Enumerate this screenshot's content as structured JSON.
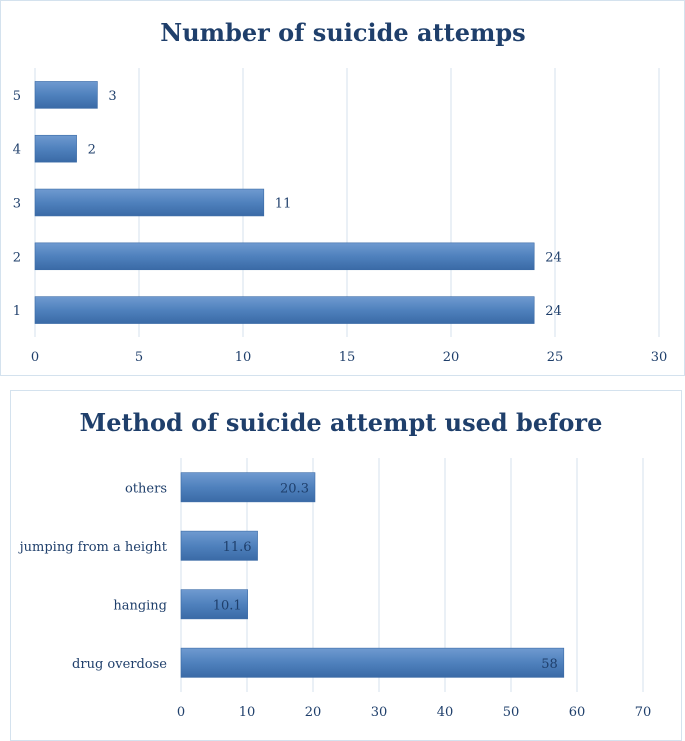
{
  "colors": {
    "bar": "#4f81bd",
    "bar_dark": "#3a6aa6",
    "bar_light": "#6f9ad0",
    "grid": "#d4e2ee",
    "text": "#1f3f6b"
  },
  "chart_data": [
    {
      "type": "bar",
      "orientation": "horizontal",
      "title": "Number of suicide attemps",
      "categories": [
        "1",
        "2",
        "3",
        "4",
        "5"
      ],
      "values": [
        24,
        24,
        11,
        2,
        3
      ],
      "data_labels": [
        "24",
        "24",
        "11",
        "2",
        "3"
      ],
      "data_label_position": "outside-end",
      "xlim": [
        0,
        30
      ],
      "xticks": [
        "0",
        "5",
        "10",
        "15",
        "20",
        "25",
        "30"
      ],
      "grid": true,
      "xlabel": "",
      "ylabel": ""
    },
    {
      "type": "bar",
      "orientation": "horizontal",
      "title": "Method of suicide attempt used before",
      "categories": [
        "drug overdose",
        "hanging",
        "jumping from a height",
        "others"
      ],
      "values": [
        58,
        10.1,
        11.6,
        20.3
      ],
      "data_labels": [
        "58",
        "10.1",
        "11.6",
        "20.3"
      ],
      "data_label_position": "inside-end",
      "xlim": [
        0,
        70
      ],
      "xticks": [
        "0",
        "10",
        "20",
        "30",
        "40",
        "50",
        "60",
        "70"
      ],
      "grid": true,
      "xlabel": "",
      "ylabel": ""
    }
  ]
}
